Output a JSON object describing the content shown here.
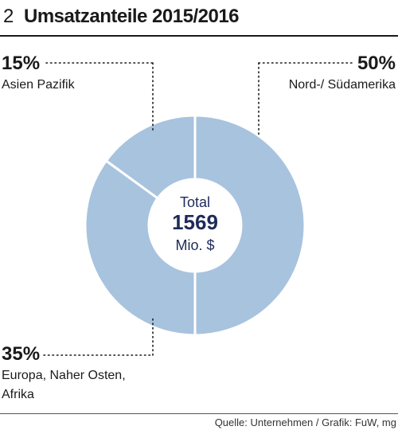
{
  "header": {
    "figure_number": "2",
    "title": "Umsatzanteile 2015/2016"
  },
  "source": "Quelle: Unternehmen / Grafik: FuW, mg",
  "colors": {
    "slice": "#a8c3de",
    "slice_border": "#ffffff",
    "center_text": "#1e2a5a",
    "leader": "#1a1a1a"
  },
  "chart_data": {
    "type": "pie",
    "donut": true,
    "title": "Umsatzanteile 2015/2016",
    "center": {
      "line1": "Total",
      "line2": "1569",
      "line3": "Mio. $"
    },
    "unit": "%",
    "slices": [
      {
        "label_lines": [
          "Nord-/ Südamerika"
        ],
        "value": 50,
        "value_label": "50%"
      },
      {
        "label_lines": [
          "Europa, Naher Osten,",
          "Afrika"
        ],
        "value": 35,
        "value_label": "35%"
      },
      {
        "label_lines": [
          "Asien Pazifik"
        ],
        "value": 15,
        "value_label": "15%"
      }
    ]
  }
}
